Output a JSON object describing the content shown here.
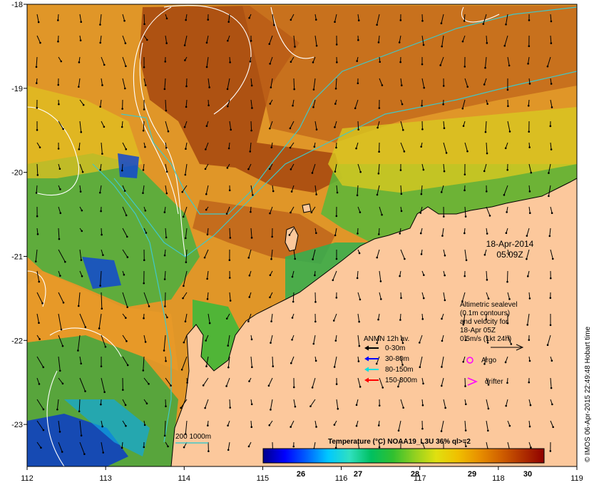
{
  "map": {
    "date": "18-Apr-2014",
    "time": "05:09Z",
    "credit": "© IMOS 06-Apr-2015 22:49:48 Hobart time",
    "lon_labels": [
      "112",
      "113",
      "114",
      "115",
      "116",
      "117",
      "118",
      "119"
    ],
    "lat_labels": [
      "-18",
      "-19",
      "-20",
      "-21",
      "-22",
      "-23"
    ],
    "lon_range": [
      112,
      119
    ],
    "lat_range": [
      -23.5,
      -18
    ]
  },
  "altimetry_note": {
    "lines": [
      "Altimetric sealevel",
      "(0.1m contours)",
      "and velocity for",
      "18-Apr 05Z",
      "0.5m/s (1kt 24h)"
    ]
  },
  "anmn_legend": {
    "title": "ANMN 12h av.",
    "items": [
      {
        "label": "0-30m",
        "color": "#000000"
      },
      {
        "label": "30-80m",
        "color": "#0000ff"
      },
      {
        "label": "80-150m",
        "color": "#00e0e0"
      },
      {
        "label": "150-300m",
        "color": "#ff0000"
      }
    ]
  },
  "symbols": {
    "argo_label": "Argo",
    "drifter_label": "drifter",
    "argo_color": "#ff00ff"
  },
  "bathymetry": {
    "label": "200 1000m",
    "color": "#40c8c8"
  },
  "colorbar": {
    "title": "Temperature (°C) NOAA19_L3U 36% ql>=2",
    "ticks": [
      "26",
      "27",
      "28",
      "29",
      "30"
    ],
    "colors": [
      "#00008a",
      "#0000ff",
      "#0060ff",
      "#00c8ff",
      "#30e0c0",
      "#00c060",
      "#30c030",
      "#90d020",
      "#e0e010",
      "#f0c000",
      "#e89000",
      "#d06000",
      "#b03000",
      "#900000"
    ]
  },
  "colors": {
    "land": "#fcc89c",
    "warm": "#b05010",
    "mid": "#e8a020"
  }
}
